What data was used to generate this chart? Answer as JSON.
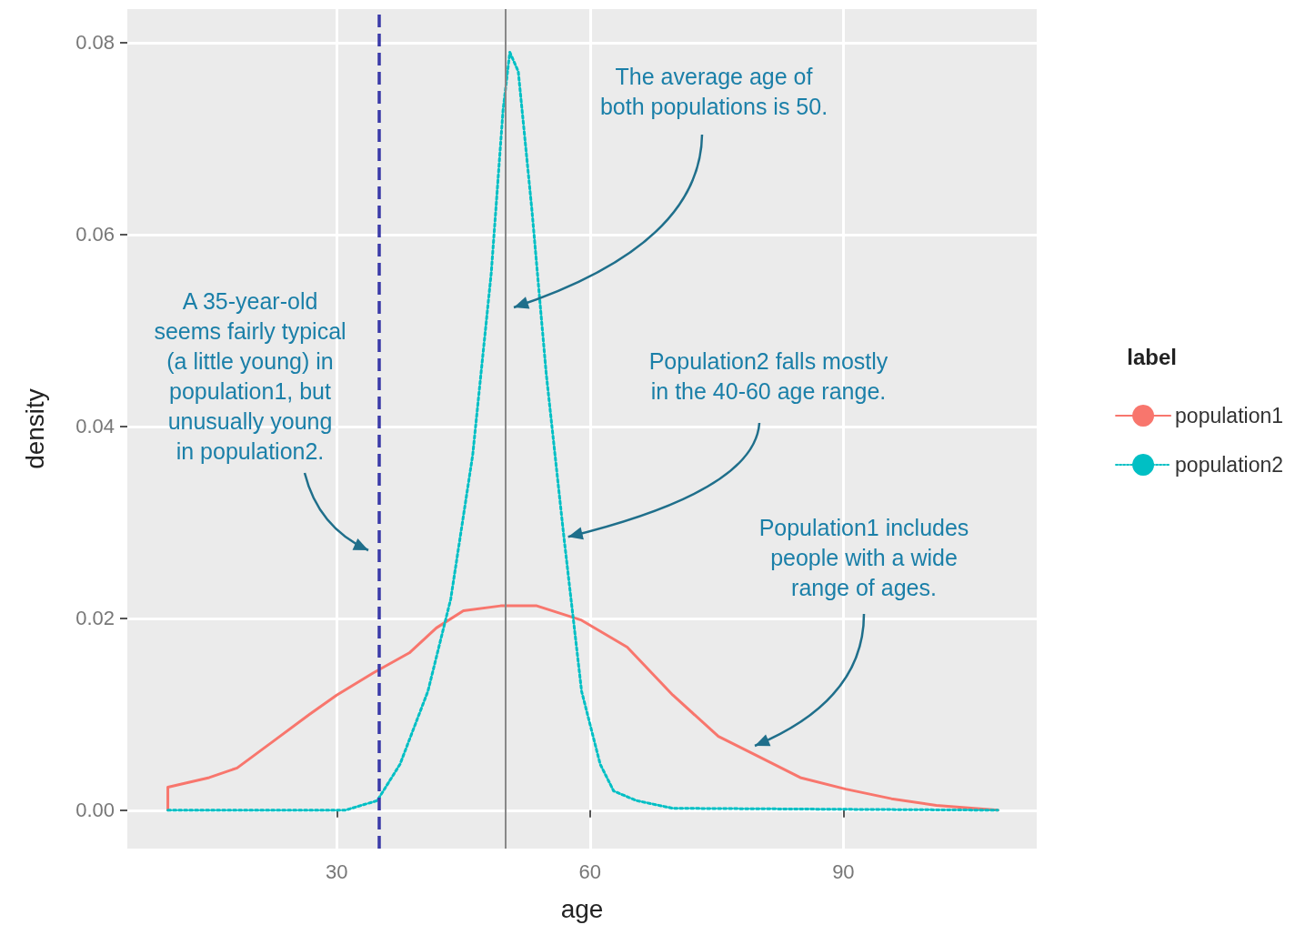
{
  "chart_data": {
    "type": "line",
    "xlabel": "age",
    "ylabel": "density",
    "legend_title": "label",
    "legend": "right",
    "grid": true,
    "marker": "none",
    "xlim": [
      5.2,
      112.9
    ],
    "ylim": [
      -0.004,
      0.0835
    ],
    "xticks": [
      30,
      60,
      90
    ],
    "yticks": [
      {
        "value": 0,
        "label": "0.00"
      },
      {
        "value": 0.02,
        "label": "0.02"
      },
      {
        "value": 0.04,
        "label": "0.04"
      },
      {
        "value": 0.06,
        "label": "0.06"
      },
      {
        "value": 0.08,
        "label": "0.08"
      }
    ],
    "series": [
      {
        "name": "population1",
        "color": "#f8766d",
        "line_style": "solid",
        "x": [
          10,
          10,
          14.9,
          18.2,
          22.5,
          26.8,
          30,
          34.3,
          38.6,
          41.8,
          45,
          49.4,
          53.7,
          59,
          64.4,
          69.8,
          75.2,
          79.5,
          84.9,
          90.3,
          95.7,
          101,
          108.3
        ],
        "values": [
          0,
          0.0024,
          0.0034,
          0.0044,
          0.0072,
          0.01,
          0.012,
          0.0143,
          0.0164,
          0.019,
          0.0208,
          0.0213,
          0.0213,
          0.0198,
          0.017,
          0.012,
          0.0077,
          0.0058,
          0.0034,
          0.0022,
          0.0012,
          0.0005,
          0
        ]
      },
      {
        "name": "population2",
        "color": "#00bfc4",
        "line_style": "dotted",
        "x": [
          10,
          31,
          34.8,
          37.5,
          40.8,
          43.5,
          46.1,
          48.3,
          49.7,
          50.5,
          51.5,
          53.1,
          54.8,
          56.9,
          59,
          61.2,
          62.8,
          65.5,
          69.8,
          108.3
        ],
        "values": [
          0,
          0,
          0.001,
          0.0048,
          0.0124,
          0.022,
          0.037,
          0.056,
          0.073,
          0.079,
          0.077,
          0.0627,
          0.0456,
          0.0285,
          0.0124,
          0.0048,
          0.002,
          0.001,
          0.0002,
          0
        ]
      }
    ],
    "ref_lines": [
      {
        "axis": "x",
        "value": 35,
        "color": "#3a3aa8",
        "line_style": "dashed"
      },
      {
        "axis": "x",
        "value": 50,
        "color": "#888888",
        "line_style": "solid"
      }
    ],
    "annotations": [
      "A 35-year-old\nseems fairly typical\n(a little young) in\npopulation1, but\nunusually young\nin population2.",
      "The average age of\nboth populations is 50.",
      {
        "text": "Population2 falls mostly\nin the 40-60 age range.",
        "x": 57.4,
        "y": 0.0285
      },
      "Population1 includes\npeople with a wide\nrange of ages."
    ]
  }
}
